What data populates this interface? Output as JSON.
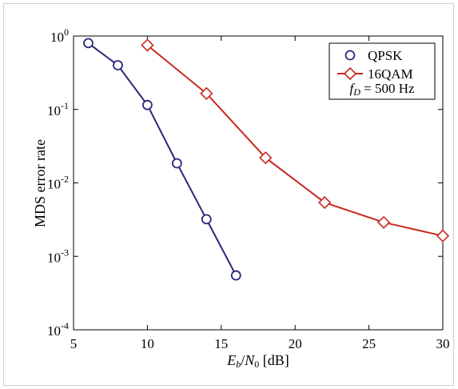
{
  "chart_data": {
    "type": "line",
    "xlabel": "Eb/N0 [dB]",
    "xlabel_parts": {
      "e": "E",
      "b": "b",
      "slash": "/",
      "n": "N",
      "zero": "0",
      "unit": " [dB]"
    },
    "ylabel": "MDS error rate",
    "xlim": [
      5,
      30
    ],
    "ylim": [
      0.0001,
      1
    ],
    "yscale": "log",
    "x_ticks": [
      "5",
      "10",
      "15",
      "20",
      "25",
      "30"
    ],
    "y_ticks": [
      {
        "base": "10",
        "exp": "0"
      },
      {
        "base": "10",
        "exp": "-1"
      },
      {
        "base": "10",
        "exp": "-2"
      },
      {
        "base": "10",
        "exp": "-3"
      },
      {
        "base": "10",
        "exp": "-4"
      }
    ],
    "grid": false,
    "legend_placement": "top-right",
    "series": [
      {
        "name": "QPSK",
        "color": "#2a2a7a",
        "marker": "circle",
        "x": [
          6,
          8,
          10,
          12,
          14,
          16
        ],
        "y": [
          0.8,
          0.4,
          0.115,
          0.0185,
          0.0032,
          0.00055
        ]
      },
      {
        "name": "16QAM",
        "color": "#c8281e",
        "marker": "diamond",
        "x": [
          10,
          14,
          18,
          22,
          26,
          30
        ],
        "y": [
          0.75,
          0.165,
          0.022,
          0.0054,
          0.0029,
          0.0019
        ]
      }
    ],
    "annotation": {
      "f": "f",
      "sub": "D",
      "rest": " = 500 Hz"
    }
  }
}
